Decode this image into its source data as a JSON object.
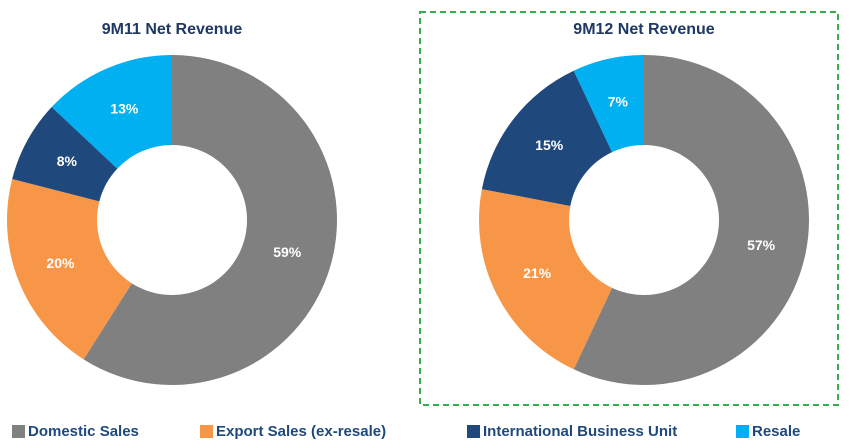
{
  "chart_data": [
    {
      "type": "donut",
      "title": "9M11 Net Revenue",
      "values": [
        59,
        20,
        8,
        13
      ],
      "value_labels": [
        "59%",
        "20%",
        "8%",
        "13%"
      ]
    },
    {
      "type": "donut",
      "title": "9M12 Net Revenue",
      "values": [
        57,
        21,
        15,
        7
      ],
      "value_labels": [
        "57%",
        "21%",
        "15%",
        "7%"
      ]
    }
  ],
  "legend": {
    "labels": [
      "Domestic Sales",
      "Export Sales (ex-resale)",
      "International Business Unit",
      "Resale"
    ],
    "colors": [
      "#808080",
      "#f79646",
      "#1f497d",
      "#00b0f0"
    ]
  }
}
